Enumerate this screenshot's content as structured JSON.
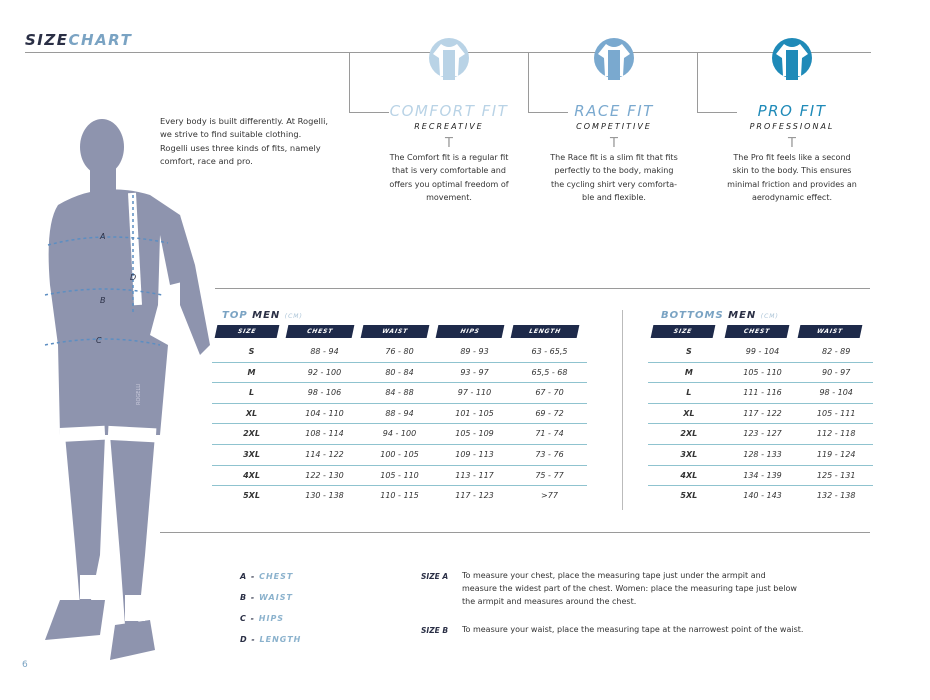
{
  "header": {
    "title_part1": "SIZE",
    "title_part2": "CHART"
  },
  "intro": "Every body is built differently. At Rogelli, we strive to find suitable clothing. Rogelli uses three kinds of fits, namely comfort, race and pro.",
  "fits": [
    {
      "title": "COMFORT FIT",
      "subtitle": "RECREATIVE",
      "description": "The Comfort fit is a regular fit that is very comfortable and offers you optimal freedom of movement.",
      "color": "#b9d3e6",
      "icon": "jersey-icon"
    },
    {
      "title": "RACE FIT",
      "subtitle": "COMPETITIVE",
      "description": "The Race fit is a slim fit that fits perfectly to the body, making the cycling shirt very comforta-ble and flexible.",
      "color": "#7aa9cf",
      "icon": "jersey-icon"
    },
    {
      "title": "PRO FIT",
      "subtitle": "PROFESSIONAL",
      "description": "The Pro fit feels like a second skin to the body. This ensures minimal friction and provides an aerodynamic effect.",
      "color": "#1f8ab8",
      "icon": "jersey-icon"
    }
  ],
  "fit_divider_glyph": "T",
  "top_table": {
    "title1": "TOP",
    "title2": "MEN",
    "unit": "(CM)",
    "headers": [
      "SIZE",
      "CHEST",
      "WAIST",
      "HIPS",
      "LENGTH"
    ],
    "rows": [
      [
        "S",
        "88 - 94",
        "76 - 80",
        "89 - 93",
        "63 - 65,5"
      ],
      [
        "M",
        "92 - 100",
        "80 - 84",
        "93 - 97",
        "65,5 - 68"
      ],
      [
        "L",
        "98 - 106",
        "84 - 88",
        "97 - 110",
        "67 - 70"
      ],
      [
        "XL",
        "104 - 110",
        "88 - 94",
        "101 - 105",
        "69 - 72"
      ],
      [
        "2XL",
        "108 - 114",
        "94 - 100",
        "105 - 109",
        "71 - 74"
      ],
      [
        "3XL",
        "114 - 122",
        "100 - 105",
        "109 - 113",
        "73 - 76"
      ],
      [
        "4XL",
        "122 - 130",
        "105 - 110",
        "113 - 117",
        "75 - 77"
      ],
      [
        "5XL",
        "130 - 138",
        "110 - 115",
        "117 - 123",
        ">77"
      ]
    ]
  },
  "bottom_table": {
    "title1": "BOTTOMS",
    "title2": "MEN",
    "unit": "(CM)",
    "headers": [
      "SIZE",
      "CHEST",
      "WAIST"
    ],
    "rows": [
      [
        "S",
        "99 - 104",
        "82 - 89"
      ],
      [
        "M",
        "105 - 110",
        "90 - 97"
      ],
      [
        "L",
        "111 - 116",
        "98 - 104"
      ],
      [
        "XL",
        "117 - 122",
        "105 - 111"
      ],
      [
        "2XL",
        "123 - 127",
        "112 - 118"
      ],
      [
        "3XL",
        "128 - 133",
        "119 - 124"
      ],
      [
        "4XL",
        "134 - 139",
        "125 - 131"
      ],
      [
        "5XL",
        "140 - 143",
        "132 - 138"
      ]
    ]
  },
  "figure_labels": [
    "A",
    "B",
    "C",
    "D"
  ],
  "figure_brand": "ROGELLI",
  "legend": [
    {
      "key": "A",
      "sep": " - ",
      "value": "CHEST"
    },
    {
      "key": "B",
      "sep": " - ",
      "value": "WAIST"
    },
    {
      "key": "C",
      "sep": " - ",
      "value": "HIPS"
    },
    {
      "key": "D",
      "sep": " - ",
      "value": "LENGTH"
    }
  ],
  "instructions": [
    {
      "label": "SIZE A",
      "text": "To measure your chest, place the measuring tape just under the armpit and measure the widest part of the chest. Women: place the measuring tape just below the armpit and measures around the chest."
    },
    {
      "label": "SIZE B",
      "text": "To measure your waist, place the measuring tape at the narrowest point of the waist."
    }
  ],
  "page_number": "6"
}
